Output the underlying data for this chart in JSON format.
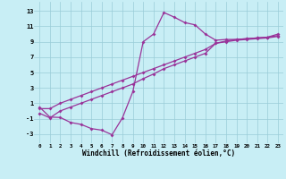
{
  "background_color": "#c8eef5",
  "grid_color": "#99ccd8",
  "line_color": "#993399",
  "markersize": 2.0,
  "linewidth": 0.9,
  "xlabel": "Windchill (Refroidissement éolien,°C)",
  "xlabel_fontsize": 5.5,
  "yticks": [
    -3,
    -1,
    1,
    3,
    5,
    7,
    9,
    11,
    13
  ],
  "xticks": [
    0,
    1,
    2,
    3,
    4,
    5,
    6,
    7,
    8,
    9,
    10,
    11,
    12,
    13,
    14,
    15,
    16,
    17,
    18,
    19,
    20,
    21,
    22,
    23
  ],
  "xlim": [
    -0.5,
    23.5
  ],
  "ylim": [
    -4.2,
    14.2
  ],
  "curve1_x": [
    0,
    1,
    2,
    3,
    4,
    5,
    6,
    7,
    8,
    9,
    10,
    11,
    12,
    13,
    14,
    15,
    16,
    17,
    18,
    19,
    20,
    21,
    22,
    23
  ],
  "curve1_y": [
    0.5,
    -0.8,
    -0.85,
    -1.5,
    -1.75,
    -2.3,
    -2.5,
    -3.1,
    -0.9,
    2.5,
    9.0,
    10.0,
    12.8,
    12.2,
    11.5,
    11.2,
    10.0,
    9.2,
    9.3,
    9.3,
    9.4,
    9.5,
    9.6,
    10.0
  ],
  "curve2_x": [
    0,
    1,
    2,
    3,
    4,
    5,
    6,
    7,
    8,
    9,
    10,
    11,
    12,
    13,
    14,
    15,
    16,
    17,
    18,
    19,
    20,
    21,
    22,
    23
  ],
  "curve2_y": [
    0.3,
    0.3,
    1.0,
    1.5,
    2.0,
    2.5,
    3.0,
    3.5,
    4.0,
    4.5,
    5.0,
    5.5,
    6.0,
    6.5,
    7.0,
    7.5,
    8.0,
    8.8,
    9.1,
    9.3,
    9.4,
    9.5,
    9.6,
    9.8
  ],
  "curve3_x": [
    0,
    1,
    2,
    3,
    4,
    5,
    6,
    7,
    8,
    9,
    10,
    11,
    12,
    13,
    14,
    15,
    16,
    17,
    18,
    19,
    20,
    21,
    22,
    23
  ],
  "curve3_y": [
    -0.3,
    -0.9,
    0.0,
    0.5,
    1.0,
    1.5,
    2.0,
    2.5,
    3.0,
    3.5,
    4.2,
    4.8,
    5.5,
    6.0,
    6.5,
    7.0,
    7.5,
    8.8,
    9.0,
    9.2,
    9.3,
    9.4,
    9.5,
    9.7
  ]
}
